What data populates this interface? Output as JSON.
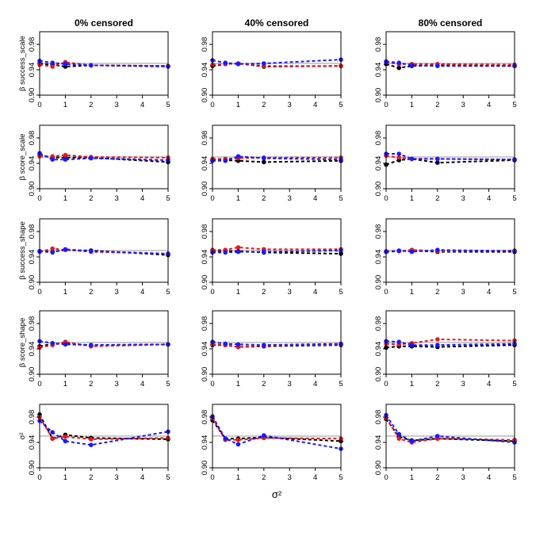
{
  "chart_data": {
    "type": "line",
    "layout": "grid 5 rows x 3 columns",
    "column_titles": [
      "0% censored",
      "40% censored",
      "80% censored"
    ],
    "row_labels": [
      "β success_scale",
      "β score_scale",
      "β success_shape",
      "β score_shape",
      "σ²"
    ],
    "xlabel": "σ²",
    "x": [
      0,
      0.5,
      1,
      2,
      5
    ],
    "x_ticks": [
      "0",
      "1",
      "2",
      "3",
      "4",
      "5"
    ],
    "xlim": [
      0,
      5
    ],
    "ylim": [
      0.9,
      1.0
    ],
    "y_ticks": [
      "0.90",
      "0.94",
      "0.98"
    ],
    "reference_line": 0.95,
    "colors": {
      "black": "#000000",
      "red": "#e31a1c",
      "blue": "#1a1aff",
      "reference": "#bbbbbb"
    },
    "series_colors": [
      "black",
      "red",
      "blue"
    ],
    "panels": [
      {
        "row": 0,
        "col": 0,
        "series": [
          {
            "color": "black",
            "values": [
              0.95,
              0.948,
              0.945,
              0.947,
              0.946
            ]
          },
          {
            "color": "red",
            "values": [
              0.948,
              0.945,
              0.952,
              0.947,
              0.946
            ]
          },
          {
            "color": "blue",
            "values": [
              0.954,
              0.951,
              0.949,
              0.947,
              0.945
            ]
          }
        ]
      },
      {
        "row": 0,
        "col": 1,
        "series": [
          {
            "color": "black",
            "values": [
              0.946,
              0.949,
              0.95,
              0.945,
              0.946
            ]
          },
          {
            "color": "red",
            "values": [
              0.948,
              0.949,
              0.95,
              0.946,
              0.946
            ]
          },
          {
            "color": "blue",
            "values": [
              0.955,
              0.951,
              0.949,
              0.95,
              0.956
            ]
          }
        ]
      },
      {
        "row": 0,
        "col": 2,
        "series": [
          {
            "color": "black",
            "values": [
              0.949,
              0.943,
              0.946,
              0.947,
              0.946
            ]
          },
          {
            "color": "red",
            "values": [
              0.952,
              0.949,
              0.949,
              0.949,
              0.948
            ]
          },
          {
            "color": "blue",
            "values": [
              0.953,
              0.951,
              0.947,
              0.946,
              0.946
            ]
          }
        ]
      },
      {
        "row": 1,
        "col": 0,
        "series": [
          {
            "color": "black",
            "values": [
              0.953,
              0.949,
              0.949,
              0.949,
              0.942
            ]
          },
          {
            "color": "red",
            "values": [
              0.951,
              0.951,
              0.953,
              0.95,
              0.949
            ]
          },
          {
            "color": "blue",
            "values": [
              0.956,
              0.946,
              0.946,
              0.948,
              0.945
            ]
          }
        ]
      },
      {
        "row": 1,
        "col": 1,
        "series": [
          {
            "color": "black",
            "values": [
              0.945,
              0.945,
              0.944,
              0.942,
              0.944
            ]
          },
          {
            "color": "red",
            "values": [
              0.947,
              0.947,
              0.948,
              0.949,
              0.949
            ]
          },
          {
            "color": "blue",
            "values": [
              0.944,
              0.944,
              0.951,
              0.948,
              0.946
            ]
          }
        ]
      },
      {
        "row": 1,
        "col": 2,
        "series": [
          {
            "color": "black",
            "values": [
              0.938,
              0.945,
              0.947,
              0.941,
              0.945
            ]
          },
          {
            "color": "red",
            "values": [
              0.952,
              0.949,
              0.947,
              0.947,
              0.946
            ]
          },
          {
            "color": "blue",
            "values": [
              0.955,
              0.955,
              0.947,
              0.947,
              0.946
            ]
          }
        ]
      },
      {
        "row": 2,
        "col": 0,
        "series": [
          {
            "color": "black",
            "values": [
              0.949,
              0.948,
              0.951,
              0.95,
              0.943
            ]
          },
          {
            "color": "red",
            "values": [
              0.948,
              0.953,
              0.951,
              0.948,
              0.945
            ]
          },
          {
            "color": "blue",
            "values": [
              0.949,
              0.947,
              0.952,
              0.949,
              0.945
            ]
          }
        ]
      },
      {
        "row": 2,
        "col": 1,
        "series": [
          {
            "color": "black",
            "values": [
              0.949,
              0.949,
              0.949,
              0.947,
              0.945
            ]
          },
          {
            "color": "red",
            "values": [
              0.951,
              0.951,
              0.955,
              0.952,
              0.952
            ]
          },
          {
            "color": "blue",
            "values": [
              0.947,
              0.947,
              0.948,
              0.948,
              0.95
            ]
          }
        ]
      },
      {
        "row": 2,
        "col": 2,
        "series": [
          {
            "color": "black",
            "values": [
              0.948,
              0.949,
              0.95,
              0.948,
              0.948
            ]
          },
          {
            "color": "red",
            "values": [
              0.949,
              0.949,
              0.951,
              0.949,
              0.95
            ]
          },
          {
            "color": "blue",
            "values": [
              0.948,
              0.95,
              0.948,
              0.951,
              0.949
            ]
          }
        ]
      },
      {
        "row": 3,
        "col": 0,
        "series": [
          {
            "color": "black",
            "values": [
              0.944,
              0.948,
              0.948,
              0.946,
              0.947
            ]
          },
          {
            "color": "red",
            "values": [
              0.942,
              0.946,
              0.951,
              0.944,
              0.947
            ]
          },
          {
            "color": "blue",
            "values": [
              0.952,
              0.949,
              0.947,
              0.946,
              0.947
            ]
          }
        ]
      },
      {
        "row": 3,
        "col": 1,
        "series": [
          {
            "color": "black",
            "values": [
              0.946,
              0.946,
              0.943,
              0.944,
              0.946
            ]
          },
          {
            "color": "red",
            "values": [
              0.947,
              0.946,
              0.943,
              0.945,
              0.947
            ]
          },
          {
            "color": "blue",
            "values": [
              0.951,
              0.948,
              0.947,
              0.946,
              0.948
            ]
          }
        ]
      },
      {
        "row": 3,
        "col": 2,
        "series": [
          {
            "color": "black",
            "values": [
              0.942,
              0.944,
              0.944,
              0.943,
              0.946
            ]
          },
          {
            "color": "red",
            "values": [
              0.948,
              0.947,
              0.949,
              0.955,
              0.953
            ]
          },
          {
            "color": "blue",
            "values": [
              0.952,
              0.951,
              0.946,
              0.946,
              0.948
            ]
          }
        ]
      },
      {
        "row": 4,
        "col": 0,
        "series": [
          {
            "color": "black",
            "values": [
              0.984,
              0.946,
              0.952,
              0.947,
              0.945
            ]
          },
          {
            "color": "red",
            "values": [
              0.98,
              0.946,
              0.949,
              0.945,
              0.947
            ]
          },
          {
            "color": "blue",
            "values": [
              0.974,
              0.956,
              0.942,
              0.936,
              0.957
            ]
          }
        ]
      },
      {
        "row": 4,
        "col": 1,
        "series": [
          {
            "color": "black",
            "values": [
              0.975,
              0.946,
              0.946,
              0.948,
              0.942
            ]
          },
          {
            "color": "red",
            "values": [
              0.978,
              0.944,
              0.944,
              0.947,
              0.946
            ]
          },
          {
            "color": "blue",
            "values": [
              0.981,
              0.946,
              0.937,
              0.951,
              0.93
            ]
          }
        ]
      },
      {
        "row": 4,
        "col": 2,
        "series": [
          {
            "color": "black",
            "values": [
              0.977,
              0.949,
              0.943,
              0.946,
              0.942
            ]
          },
          {
            "color": "red",
            "values": [
              0.979,
              0.946,
              0.94,
              0.946,
              0.944
            ]
          },
          {
            "color": "blue",
            "values": [
              0.983,
              0.953,
              0.942,
              0.95,
              0.94
            ]
          }
        ]
      }
    ]
  }
}
